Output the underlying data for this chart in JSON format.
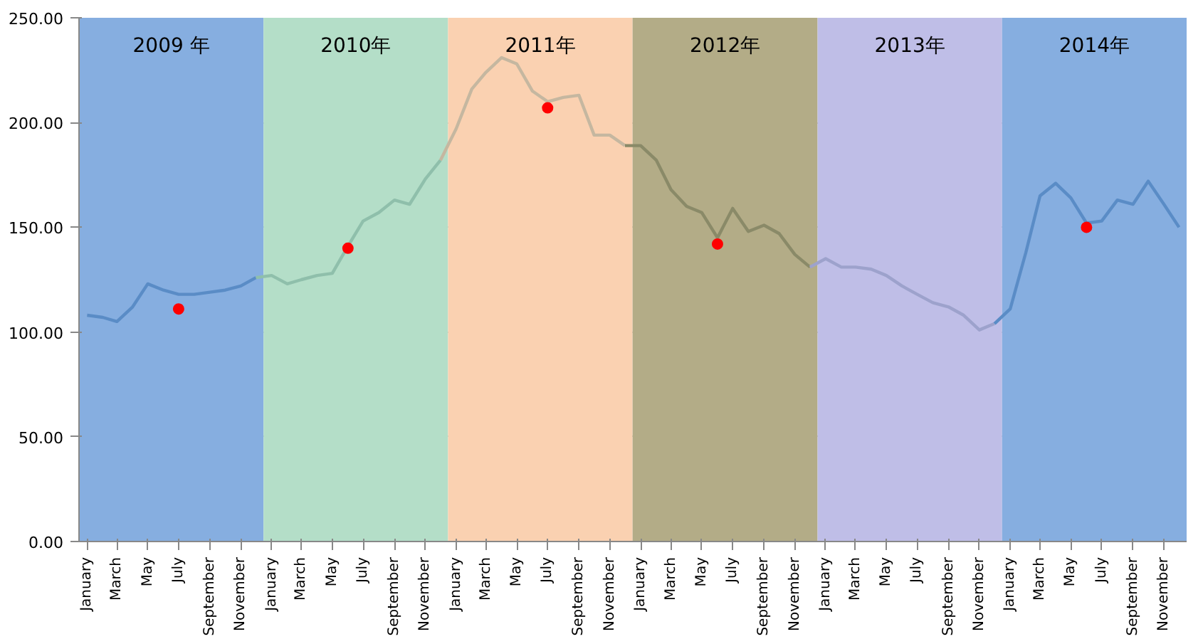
{
  "chart_data": {
    "type": "line",
    "xlim": [
      "2008-12-16",
      "2014-12-16"
    ],
    "xticks": [
      {
        "value": "2009-01",
        "label": "January"
      },
      {
        "value": "2009-03",
        "label": "March"
      },
      {
        "value": "2009-05",
        "label": "May"
      },
      {
        "value": "2009-07",
        "label": "July"
      },
      {
        "value": "2009-09",
        "label": "September"
      },
      {
        "value": "2009-11",
        "label": "November"
      },
      {
        "value": "2010-01",
        "label": "January"
      },
      {
        "value": "2010-03",
        "label": "March"
      },
      {
        "value": "2010-05",
        "label": "May"
      },
      {
        "value": "2010-07",
        "label": "July"
      },
      {
        "value": "2010-09",
        "label": "September"
      },
      {
        "value": "2010-11",
        "label": "November"
      },
      {
        "value": "2011-01",
        "label": "January"
      },
      {
        "value": "2011-03",
        "label": "March"
      },
      {
        "value": "2011-05",
        "label": "May"
      },
      {
        "value": "2011-07",
        "label": "July"
      },
      {
        "value": "2011-09",
        "label": "September"
      },
      {
        "value": "2011-11",
        "label": "November"
      },
      {
        "value": "2012-01",
        "label": "January"
      },
      {
        "value": "2012-03",
        "label": "March"
      },
      {
        "value": "2012-05",
        "label": "May"
      },
      {
        "value": "2012-07",
        "label": "July"
      },
      {
        "value": "2012-09",
        "label": "September"
      },
      {
        "value": "2012-11",
        "label": "November"
      },
      {
        "value": "2013-01",
        "label": "January"
      },
      {
        "value": "2013-03",
        "label": "March"
      },
      {
        "value": "2013-05",
        "label": "May"
      },
      {
        "value": "2013-07",
        "label": "July"
      },
      {
        "value": "2013-09",
        "label": "September"
      },
      {
        "value": "2013-11",
        "label": "November"
      },
      {
        "value": "2014-01",
        "label": "January"
      },
      {
        "value": "2014-03",
        "label": "March"
      },
      {
        "value": "2014-05",
        "label": "May"
      },
      {
        "value": "2014-07",
        "label": "July"
      },
      {
        "value": "2014-09",
        "label": "September"
      },
      {
        "value": "2014-11",
        "label": "November"
      }
    ],
    "ylim": [
      0,
      250
    ],
    "yticks": [
      {
        "value": 0,
        "label": "0.00"
      },
      {
        "value": 50,
        "label": "50.00"
      },
      {
        "value": 100,
        "label": "100.00"
      },
      {
        "value": 150,
        "label": "150.00"
      },
      {
        "value": 200,
        "label": "200.00"
      },
      {
        "value": 250,
        "label": "250.00"
      }
    ],
    "grid": "y",
    "line_style": "solid",
    "bands": [
      {
        "axis": "x",
        "from": "2008-12-16",
        "to": "2009-12-16",
        "label": "2009 年",
        "color": "#86aee0"
      },
      {
        "axis": "x",
        "from": "2009-12-16",
        "to": "2010-12-16",
        "label": "2010年",
        "color": "#b4dec8"
      },
      {
        "axis": "x",
        "from": "2010-12-16",
        "to": "2011-12-16",
        "label": "2011年",
        "color": "#fad1b1"
      },
      {
        "axis": "x",
        "from": "2011-12-16",
        "to": "2012-12-16",
        "label": "2012年",
        "color": "#b3ac87"
      },
      {
        "axis": "x",
        "from": "2012-12-16",
        "to": "2013-12-16",
        "label": "2013年",
        "color": "#bfbee7"
      },
      {
        "axis": "x",
        "from": "2013-12-16",
        "to": "2014-12-16",
        "label": "2014年",
        "color": "#86aee0"
      }
    ],
    "series": [
      {
        "color": "#5a8cc6",
        "x": [
          "2009-01",
          "2009-02",
          "2009-03",
          "2009-04",
          "2009-05",
          "2009-06",
          "2009-07",
          "2009-08",
          "2009-09",
          "2009-10",
          "2009-11",
          "2009-12"
        ],
        "values": [
          108,
          107,
          105,
          112,
          123,
          120,
          118,
          118,
          119,
          120,
          122,
          126
        ]
      },
      {
        "color": "#8fbfab",
        "x": [
          "2009-12",
          "2010-01",
          "2010-02",
          "2010-03",
          "2010-04",
          "2010-05",
          "2010-06",
          "2010-07",
          "2010-08",
          "2010-09",
          "2010-10",
          "2010-11",
          "2010-12"
        ],
        "values": [
          126,
          127,
          123,
          125,
          127,
          128,
          141,
          153,
          157,
          163,
          161,
          173,
          182
        ]
      },
      {
        "color": "#c5b7a0",
        "x": [
          "2010-12",
          "2011-01",
          "2011-02",
          "2011-03",
          "2011-04",
          "2011-05",
          "2011-06",
          "2011-07",
          "2011-08",
          "2011-09",
          "2011-10",
          "2011-11",
          "2011-12"
        ],
        "values": [
          182,
          197,
          216,
          224,
          231,
          228,
          215,
          210,
          212,
          213,
          194,
          194,
          189
        ]
      },
      {
        "color": "#8a8a68",
        "x": [
          "2011-12",
          "2012-01",
          "2012-02",
          "2012-03",
          "2012-04",
          "2012-05",
          "2012-06",
          "2012-07",
          "2012-08",
          "2012-09",
          "2012-10",
          "2012-11",
          "2012-12"
        ],
        "values": [
          189,
          189,
          182,
          168,
          160,
          157,
          145,
          159,
          148,
          151,
          147,
          137,
          131
        ]
      },
      {
        "color": "#9da2cc",
        "x": [
          "2012-12",
          "2013-01",
          "2013-02",
          "2013-03",
          "2013-04",
          "2013-05",
          "2013-06",
          "2013-07",
          "2013-08",
          "2013-09",
          "2013-10",
          "2013-11",
          "2013-12"
        ],
        "values": [
          131,
          135,
          131,
          131,
          130,
          127,
          122,
          118,
          114,
          112,
          108,
          101,
          104
        ]
      },
      {
        "color": "#5a8cc6",
        "x": [
          "2013-12",
          "2014-01",
          "2014-02",
          "2014-03",
          "2014-04",
          "2014-05",
          "2014-06",
          "2014-07",
          "2014-08",
          "2014-09",
          "2014-10",
          "2014-11",
          "2014-12"
        ],
        "values": [
          104,
          111,
          138,
          165,
          171,
          164,
          152,
          153,
          163,
          161,
          172,
          161,
          150
        ]
      },
      {
        "type": "scatter",
        "color": "#ff0000",
        "marker": "circle",
        "x": [
          "2009-07",
          "2010-06",
          "2011-07",
          "2012-06",
          "2014-06"
        ],
        "values": [
          111,
          140,
          207,
          142,
          150
        ]
      }
    ]
  }
}
